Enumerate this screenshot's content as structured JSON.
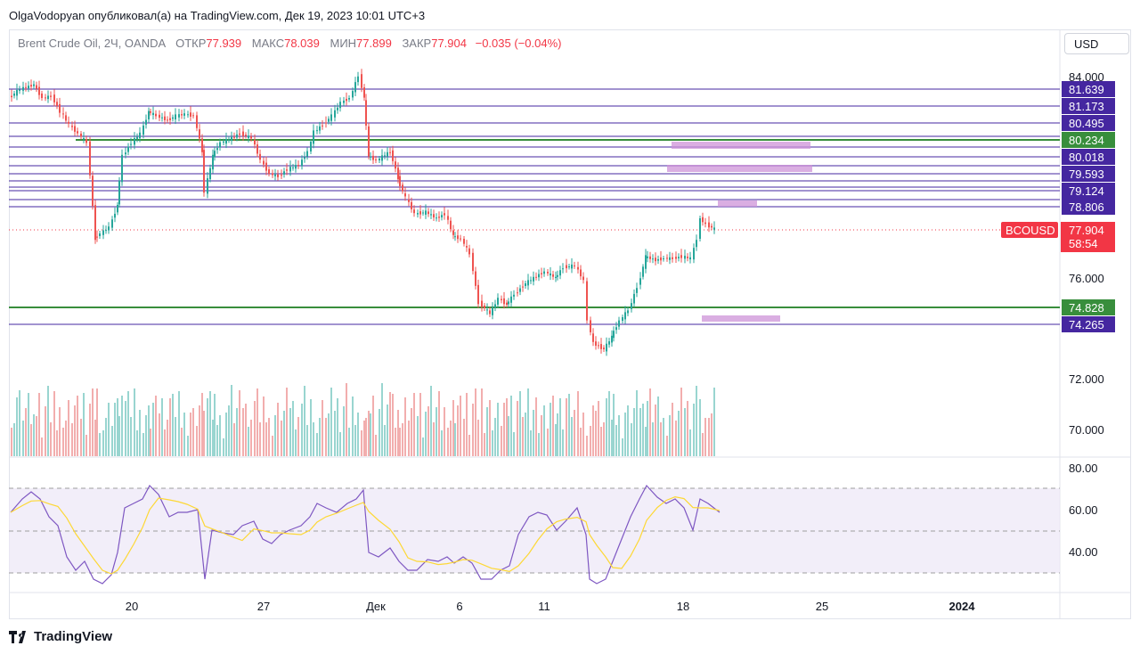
{
  "header": {
    "publisher_line": "OlgaVodopyan опубликовал(а) на TradingView.com, Дек 19, 2023 10:01 UTC+3"
  },
  "legend": {
    "symbol": "Brent Crude Oil, 2Ч, OANDA",
    "open_label": "ОТКР",
    "open": "77.939",
    "high_label": "МАКС",
    "high": "78.039",
    "low_label": "МИН",
    "low": "77.899",
    "close_label": "ЗАКР",
    "close": "77.904",
    "change": "−0.035 (−0.04%)"
  },
  "currency_button": "USD",
  "price_axis": {
    "ticks": [
      "84.000",
      "76.000",
      "72.000",
      "70.000"
    ]
  },
  "rsi_axis": {
    "ticks": [
      "80.00",
      "60.00",
      "40.00"
    ]
  },
  "time_axis": {
    "ticks": [
      "20",
      "27",
      "Дек",
      "6",
      "11",
      "18",
      "25",
      "2024"
    ]
  },
  "levels": [
    {
      "label": "81.639",
      "color": "#4527a0"
    },
    {
      "label": "81.173",
      "color": "#4527a0"
    },
    {
      "label": "80.495",
      "color": "#4527a0"
    },
    {
      "label": "80.234",
      "color": "#388e3c"
    },
    {
      "label": "80.018",
      "color": "#4527a0"
    },
    {
      "label": "79.593",
      "color": "#4527a0"
    },
    {
      "label": "79.124",
      "color": "#4527a0"
    },
    {
      "label": "78.806",
      "color": "#4527a0"
    },
    {
      "label": "74.828",
      "color": "#388e3c"
    },
    {
      "label": "74.265",
      "color": "#4527a0"
    }
  ],
  "current_price": {
    "symbol_tag": "BCOUSD",
    "price": "77.904",
    "countdown": "58:54",
    "color": "#f23645"
  },
  "colors": {
    "up": "#26a69a",
    "down": "#ef5350",
    "rsi": "#7e57c2",
    "rsi_ma": "#fdd835",
    "zone": "#ce93d8"
  },
  "footer": {
    "brand": "TradingView",
    "logo_icon": "tradingview-logo-icon"
  }
}
